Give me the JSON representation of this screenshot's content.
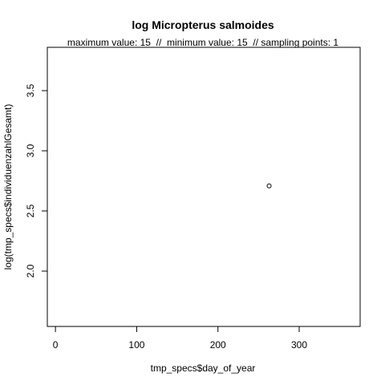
{
  "chart_data": {
    "type": "scatter",
    "title": "log Micropterus salmoides",
    "subtitle": "maximum value: 15  //  minimum value: 15  // sampling points: 1",
    "xlabel": "tmp_specs$day_of_year",
    "ylabel": "log(tmp_specs$individuenzahlGesamt)",
    "xlim": [
      -10,
      375
    ],
    "ylim": [
      1.54,
      3.86
    ],
    "x_ticks": [
      0,
      100,
      200,
      300
    ],
    "y_ticks": [
      2.0,
      2.5,
      3.0,
      3.5
    ],
    "x_tick_labels": [
      "0",
      "100",
      "200",
      "300"
    ],
    "y_tick_labels": [
      "2.0",
      "2.5",
      "3.0",
      "3.5"
    ],
    "points": [
      {
        "x": 263,
        "y": 2.708
      }
    ],
    "grid": false,
    "marker": "open-circle"
  }
}
